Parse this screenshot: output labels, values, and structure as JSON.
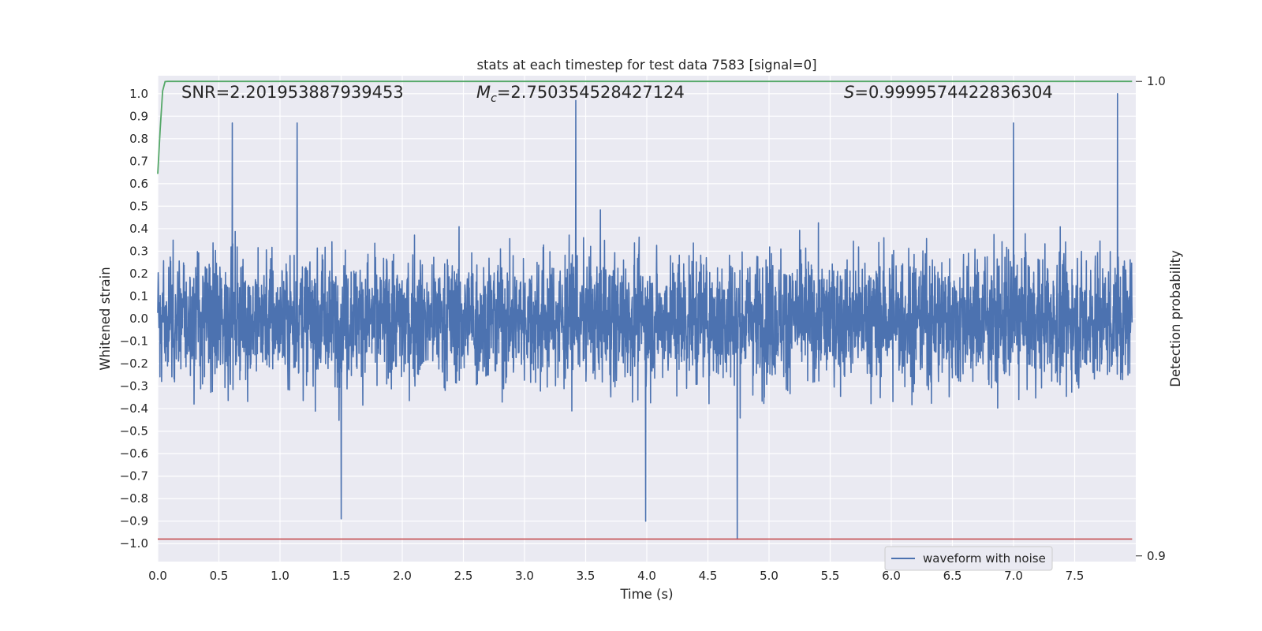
{
  "chart_data": {
    "type": "line",
    "title": "stats at each timestep for test data 7583 [signal=0]",
    "xlabel": "Time (s)",
    "ylabel": "Whitened strain",
    "y2label": "Detection probability",
    "xlim": [
      0.0,
      8.0
    ],
    "ylim": [
      -1.08,
      1.08
    ],
    "y2lim": [
      0.8988,
      1.0012
    ],
    "xticks": [
      "0.0",
      "0.5",
      "1.0",
      "1.5",
      "2.0",
      "2.5",
      "3.0",
      "3.5",
      "4.0",
      "4.5",
      "5.0",
      "5.5",
      "6.0",
      "6.5",
      "7.0",
      "7.5"
    ],
    "yticks": [
      "1.0",
      "0.9",
      "0.8",
      "0.7",
      "0.6",
      "0.5",
      "0.4",
      "0.3",
      "0.2",
      "0.1",
      "0.0",
      "−0.1",
      "−0.2",
      "−0.3",
      "−0.4",
      "−0.5",
      "−0.6",
      "−0.7",
      "−0.8",
      "−0.9",
      "−1.0"
    ],
    "y2ticks": [
      "1.0",
      "0.9"
    ],
    "grid": true,
    "legend": {
      "placement": "lower-right",
      "entries": [
        "waveform with noise"
      ]
    },
    "annotations": {
      "snr": "SNR=2.201953887939453",
      "mc_symbol": "M",
      "mc_sub": "c",
      "mc_value": "=2.750354528427124",
      "s_symbol": "S",
      "s_value": "=0.9999574422836304"
    },
    "series": [
      {
        "name": "waveform with noise",
        "color": "#4c72b0",
        "description_extrema": {
          "x": [
            0.0,
            7.97
          ],
          "y": [
            -0.98,
            1.0
          ]
        },
        "peaks": [
          [
            0.61,
            0.87
          ],
          [
            1.14,
            0.87
          ],
          [
            3.42,
            0.97
          ],
          [
            7.0,
            0.87
          ],
          [
            7.85,
            1.0
          ],
          [
            4.74,
            -0.98
          ],
          [
            1.5,
            -0.89
          ],
          [
            3.99,
            -0.9
          ]
        ]
      },
      {
        "color": "#55a868",
        "axis": "right",
        "x": [
          0.0,
          0.02,
          0.04,
          0.06,
          0.08,
          0.2,
          1.0,
          4.0,
          7.97
        ],
        "y": [
          0.9805,
          0.99,
          0.998,
          0.99995,
          1.0,
          1.0,
          1.0,
          1.0,
          1.0
        ]
      },
      {
        "color": "#c44e52",
        "axis": "left",
        "x": [
          0.0,
          7.97
        ],
        "y": [
          -0.98,
          -0.98
        ]
      }
    ]
  }
}
